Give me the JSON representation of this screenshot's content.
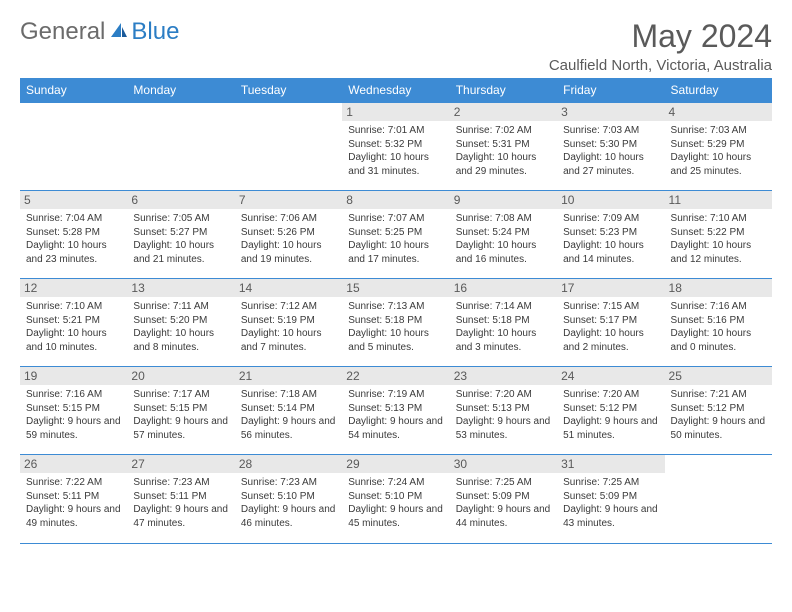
{
  "logo": {
    "general": "General",
    "blue": "Blue"
  },
  "title": "May 2024",
  "location": "Caulfield North, Victoria, Australia",
  "colors": {
    "header_bg": "#3d8bd4",
    "header_fg": "#ffffff",
    "day_number_bg": "#e8e8e8",
    "border": "#3d8bd4",
    "title_color": "#5a5a5a",
    "logo_gray": "#6b6b6b",
    "logo_blue": "#2b7dc4"
  },
  "day_headers": [
    "Sunday",
    "Monday",
    "Tuesday",
    "Wednesday",
    "Thursday",
    "Friday",
    "Saturday"
  ],
  "weeks": [
    [
      null,
      null,
      null,
      {
        "n": "1",
        "sr": "7:01 AM",
        "ss": "5:32 PM",
        "dl": "10 hours and 31 minutes."
      },
      {
        "n": "2",
        "sr": "7:02 AM",
        "ss": "5:31 PM",
        "dl": "10 hours and 29 minutes."
      },
      {
        "n": "3",
        "sr": "7:03 AM",
        "ss": "5:30 PM",
        "dl": "10 hours and 27 minutes."
      },
      {
        "n": "4",
        "sr": "7:03 AM",
        "ss": "5:29 PM",
        "dl": "10 hours and 25 minutes."
      }
    ],
    [
      {
        "n": "5",
        "sr": "7:04 AM",
        "ss": "5:28 PM",
        "dl": "10 hours and 23 minutes."
      },
      {
        "n": "6",
        "sr": "7:05 AM",
        "ss": "5:27 PM",
        "dl": "10 hours and 21 minutes."
      },
      {
        "n": "7",
        "sr": "7:06 AM",
        "ss": "5:26 PM",
        "dl": "10 hours and 19 minutes."
      },
      {
        "n": "8",
        "sr": "7:07 AM",
        "ss": "5:25 PM",
        "dl": "10 hours and 17 minutes."
      },
      {
        "n": "9",
        "sr": "7:08 AM",
        "ss": "5:24 PM",
        "dl": "10 hours and 16 minutes."
      },
      {
        "n": "10",
        "sr": "7:09 AM",
        "ss": "5:23 PM",
        "dl": "10 hours and 14 minutes."
      },
      {
        "n": "11",
        "sr": "7:10 AM",
        "ss": "5:22 PM",
        "dl": "10 hours and 12 minutes."
      }
    ],
    [
      {
        "n": "12",
        "sr": "7:10 AM",
        "ss": "5:21 PM",
        "dl": "10 hours and 10 minutes."
      },
      {
        "n": "13",
        "sr": "7:11 AM",
        "ss": "5:20 PM",
        "dl": "10 hours and 8 minutes."
      },
      {
        "n": "14",
        "sr": "7:12 AM",
        "ss": "5:19 PM",
        "dl": "10 hours and 7 minutes."
      },
      {
        "n": "15",
        "sr": "7:13 AM",
        "ss": "5:18 PM",
        "dl": "10 hours and 5 minutes."
      },
      {
        "n": "16",
        "sr": "7:14 AM",
        "ss": "5:18 PM",
        "dl": "10 hours and 3 minutes."
      },
      {
        "n": "17",
        "sr": "7:15 AM",
        "ss": "5:17 PM",
        "dl": "10 hours and 2 minutes."
      },
      {
        "n": "18",
        "sr": "7:16 AM",
        "ss": "5:16 PM",
        "dl": "10 hours and 0 minutes."
      }
    ],
    [
      {
        "n": "19",
        "sr": "7:16 AM",
        "ss": "5:15 PM",
        "dl": "9 hours and 59 minutes."
      },
      {
        "n": "20",
        "sr": "7:17 AM",
        "ss": "5:15 PM",
        "dl": "9 hours and 57 minutes."
      },
      {
        "n": "21",
        "sr": "7:18 AM",
        "ss": "5:14 PM",
        "dl": "9 hours and 56 minutes."
      },
      {
        "n": "22",
        "sr": "7:19 AM",
        "ss": "5:13 PM",
        "dl": "9 hours and 54 minutes."
      },
      {
        "n": "23",
        "sr": "7:20 AM",
        "ss": "5:13 PM",
        "dl": "9 hours and 53 minutes."
      },
      {
        "n": "24",
        "sr": "7:20 AM",
        "ss": "5:12 PM",
        "dl": "9 hours and 51 minutes."
      },
      {
        "n": "25",
        "sr": "7:21 AM",
        "ss": "5:12 PM",
        "dl": "9 hours and 50 minutes."
      }
    ],
    [
      {
        "n": "26",
        "sr": "7:22 AM",
        "ss": "5:11 PM",
        "dl": "9 hours and 49 minutes."
      },
      {
        "n": "27",
        "sr": "7:23 AM",
        "ss": "5:11 PM",
        "dl": "9 hours and 47 minutes."
      },
      {
        "n": "28",
        "sr": "7:23 AM",
        "ss": "5:10 PM",
        "dl": "9 hours and 46 minutes."
      },
      {
        "n": "29",
        "sr": "7:24 AM",
        "ss": "5:10 PM",
        "dl": "9 hours and 45 minutes."
      },
      {
        "n": "30",
        "sr": "7:25 AM",
        "ss": "5:09 PM",
        "dl": "9 hours and 44 minutes."
      },
      {
        "n": "31",
        "sr": "7:25 AM",
        "ss": "5:09 PM",
        "dl": "9 hours and 43 minutes."
      },
      null
    ]
  ],
  "labels": {
    "sunrise": "Sunrise:",
    "sunset": "Sunset:",
    "daylight": "Daylight:"
  }
}
